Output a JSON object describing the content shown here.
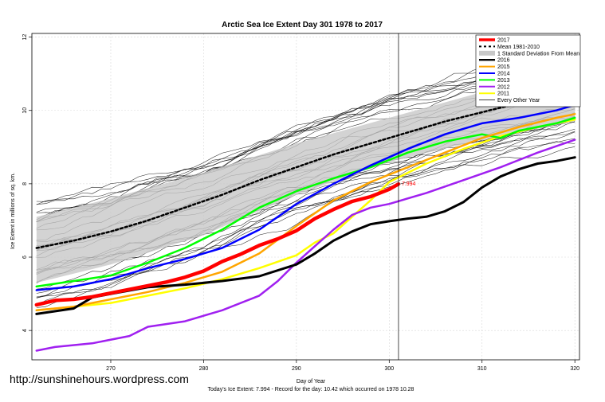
{
  "watermark": "http://sunshinehours.wordpress.com",
  "footer_text": "Today's Ice Extent: 7.994  - Record for the day: 10.42 which occurred on 1978 10.28",
  "today_label": "7.994",
  "chart_data": {
    "type": "line",
    "title": "Arctic Sea Ice Extent Day 301 1978 to 2017",
    "xlabel": "Day of Year",
    "ylabel": "Ice Extent in millions of sq. km.",
    "xlim": [
      261.5,
      320.5
    ],
    "ylim": [
      3.2,
      12.1
    ],
    "xticks": [
      270,
      280,
      290,
      300,
      310,
      320
    ],
    "yticks": [
      4,
      6,
      8,
      10,
      12
    ],
    "grid": true,
    "today_day": 301,
    "today_value": 7.994,
    "legend_position": "top-right",
    "band": {
      "name": "1 Standard Deviation From Mean",
      "color": "#c8c8c8",
      "x": [
        262,
        270,
        280,
        290,
        300,
        310,
        320
      ],
      "lower": [
        5.3,
        5.8,
        6.6,
        7.7,
        8.6,
        9.2,
        9.7
      ],
      "upper": [
        7.1,
        7.6,
        8.3,
        9.1,
        9.8,
        10.5,
        11.1
      ]
    },
    "series": [
      {
        "name": "2017",
        "color": "#ff0000",
        "width": 4.5,
        "dash": "",
        "x": [
          262,
          264,
          266,
          268,
          270,
          272,
          274,
          276,
          278,
          280,
          282,
          284,
          286,
          288,
          290,
          292,
          294,
          296,
          298,
          300,
          301
        ],
        "y": [
          4.7,
          4.82,
          4.85,
          4.92,
          5.02,
          5.12,
          5.22,
          5.32,
          5.45,
          5.62,
          5.88,
          6.08,
          6.32,
          6.5,
          6.72,
          7.05,
          7.3,
          7.52,
          7.65,
          7.85,
          7.994
        ]
      },
      {
        "name": "Mean 1981-2010",
        "color": "#000000",
        "width": 2.5,
        "dash": "3,3",
        "x": [
          262,
          266,
          270,
          274,
          278,
          282,
          286,
          290,
          294,
          298,
          302,
          306,
          310,
          314,
          318,
          320
        ],
        "y": [
          6.25,
          6.45,
          6.7,
          7.0,
          7.35,
          7.7,
          8.1,
          8.45,
          8.8,
          9.1,
          9.4,
          9.7,
          9.95,
          10.2,
          10.45,
          10.55
        ]
      },
      {
        "name": "2016",
        "color": "#000000",
        "width": 3,
        "dash": "",
        "x": [
          262,
          266,
          268,
          270,
          274,
          278,
          282,
          286,
          290,
          292,
          294,
          296,
          298,
          300,
          302,
          304,
          306,
          308,
          310,
          312,
          314,
          316,
          318,
          320
        ],
        "y": [
          4.45,
          4.6,
          4.9,
          5.0,
          5.18,
          5.25,
          5.35,
          5.48,
          5.8,
          6.1,
          6.45,
          6.7,
          6.9,
          6.98,
          7.05,
          7.1,
          7.25,
          7.5,
          7.9,
          8.2,
          8.4,
          8.55,
          8.62,
          8.72
        ]
      },
      {
        "name": "2015",
        "color": "#ffa500",
        "width": 2.5,
        "dash": "",
        "x": [
          262,
          266,
          270,
          274,
          278,
          282,
          286,
          290,
          294,
          298,
          302,
          306,
          310,
          314,
          318,
          320
        ],
        "y": [
          4.55,
          4.65,
          4.85,
          5.05,
          5.3,
          5.6,
          6.1,
          6.85,
          7.55,
          8.05,
          8.45,
          8.85,
          9.25,
          9.55,
          9.8,
          9.9
        ]
      },
      {
        "name": "2014",
        "color": "#0000ff",
        "width": 2.5,
        "dash": "",
        "x": [
          262,
          266,
          270,
          274,
          278,
          282,
          286,
          290,
          294,
          298,
          302,
          306,
          310,
          314,
          318,
          320
        ],
        "y": [
          5.1,
          5.2,
          5.4,
          5.7,
          5.95,
          6.25,
          6.75,
          7.45,
          8.0,
          8.5,
          8.95,
          9.35,
          9.65,
          9.8,
          10.0,
          10.15
        ]
      },
      {
        "name": "2013",
        "color": "#00ff00",
        "width": 2.5,
        "dash": "",
        "x": [
          262,
          266,
          270,
          274,
          278,
          282,
          286,
          290,
          294,
          298,
          302,
          306,
          310,
          312,
          314,
          318,
          320
        ],
        "y": [
          5.2,
          5.35,
          5.5,
          5.85,
          6.25,
          6.75,
          7.35,
          7.8,
          8.15,
          8.45,
          8.85,
          9.15,
          9.35,
          9.25,
          9.45,
          9.65,
          9.8
        ]
      },
      {
        "name": "2012",
        "color": "#a020f0",
        "width": 2.5,
        "dash": "",
        "x": [
          262,
          264,
          268,
          272,
          274,
          278,
          282,
          286,
          288,
          290,
          292,
          294,
          296,
          298,
          300,
          304,
          308,
          312,
          316,
          320
        ],
        "y": [
          3.45,
          3.55,
          3.65,
          3.85,
          4.1,
          4.25,
          4.55,
          4.95,
          5.35,
          5.85,
          6.3,
          6.75,
          7.15,
          7.35,
          7.45,
          7.75,
          8.1,
          8.45,
          8.85,
          9.2
        ]
      },
      {
        "name": "2011",
        "color": "#ffff00",
        "width": 2.5,
        "dash": "",
        "x": [
          262,
          266,
          270,
          274,
          278,
          282,
          286,
          290,
          292,
          294,
          296,
          298,
          300,
          304,
          308,
          312,
          316,
          320
        ],
        "y": [
          4.55,
          4.65,
          4.75,
          4.95,
          5.15,
          5.4,
          5.7,
          6.05,
          6.4,
          6.65,
          7.1,
          7.55,
          8.05,
          8.55,
          8.95,
          9.3,
          9.55,
          9.75
        ]
      },
      {
        "name": "Every Other Year",
        "color": "#000000",
        "width": 0.6,
        "dash": "",
        "legend_only": true
      }
    ]
  }
}
